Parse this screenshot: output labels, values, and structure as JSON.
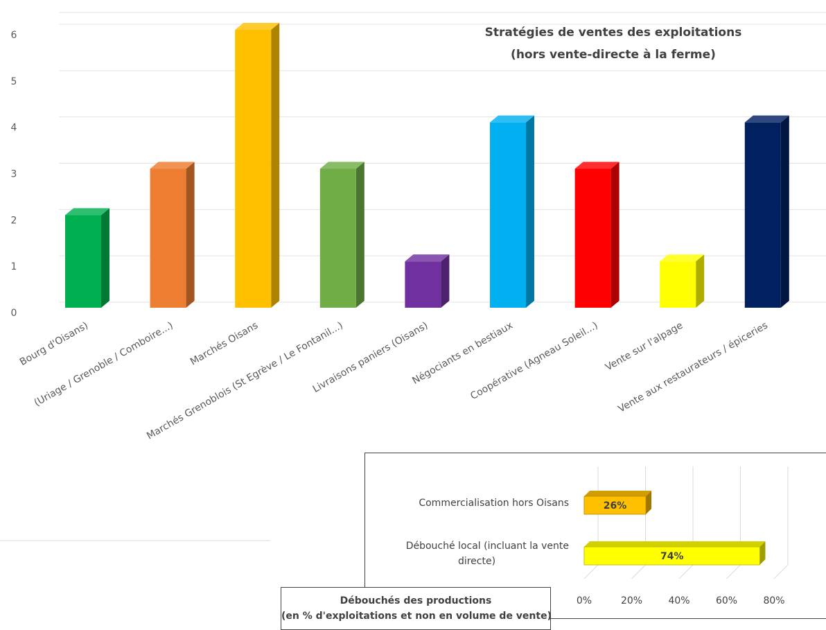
{
  "chart_data": [
    {
      "type": "bar",
      "title_lines": [
        "Stratégies  de ventes des exploitations",
        "(hors vente-directe  à la ferme)"
      ],
      "categories": [
        "Bourg d'Oisans)",
        "(Uriage / Grenoble / Comboire...)",
        "Marchés Oisans",
        "Marchés Grenoblois (St Egrève / Le Fontanil...)",
        "Livraisons paniers (Oisans)",
        "Négociants en bestiaux",
        "Coopérative (Agneau Soleil...)",
        "Vente sur l'alpage",
        "Vente aux restaurateurs / épiceries"
      ],
      "values": [
        2,
        3,
        6,
        3,
        1,
        4,
        3,
        1,
        4
      ],
      "colors": [
        "#00b050",
        "#ed7d31",
        "#ffc000",
        "#70ad47",
        "#7030a0",
        "#00b0f0",
        "#ff0000",
        "#ffff00",
        "#002060"
      ],
      "yticks": [
        "0",
        "1",
        "2",
        "3",
        "4",
        "5",
        "6"
      ],
      "ylim": [
        0,
        6
      ],
      "grid": true
    },
    {
      "type": "bar",
      "orientation": "horizontal",
      "title_lines": [
        "Débouchés des productions",
        "(en % d'exploitations et non en volume de vente)"
      ],
      "categories": [
        [
          "Commercialisation hors Oisans"
        ],
        [
          "Débouché local (incluant la vente",
          "directe)"
        ]
      ],
      "values": [
        26,
        74
      ],
      "value_labels": [
        "26%",
        "74%"
      ],
      "colors": [
        "#ffc000",
        "#ffff00"
      ],
      "xticks": [
        "0%",
        "20%",
        "40%",
        "60%",
        "80%"
      ],
      "xlim": [
        0,
        80
      ],
      "grid": true
    }
  ]
}
